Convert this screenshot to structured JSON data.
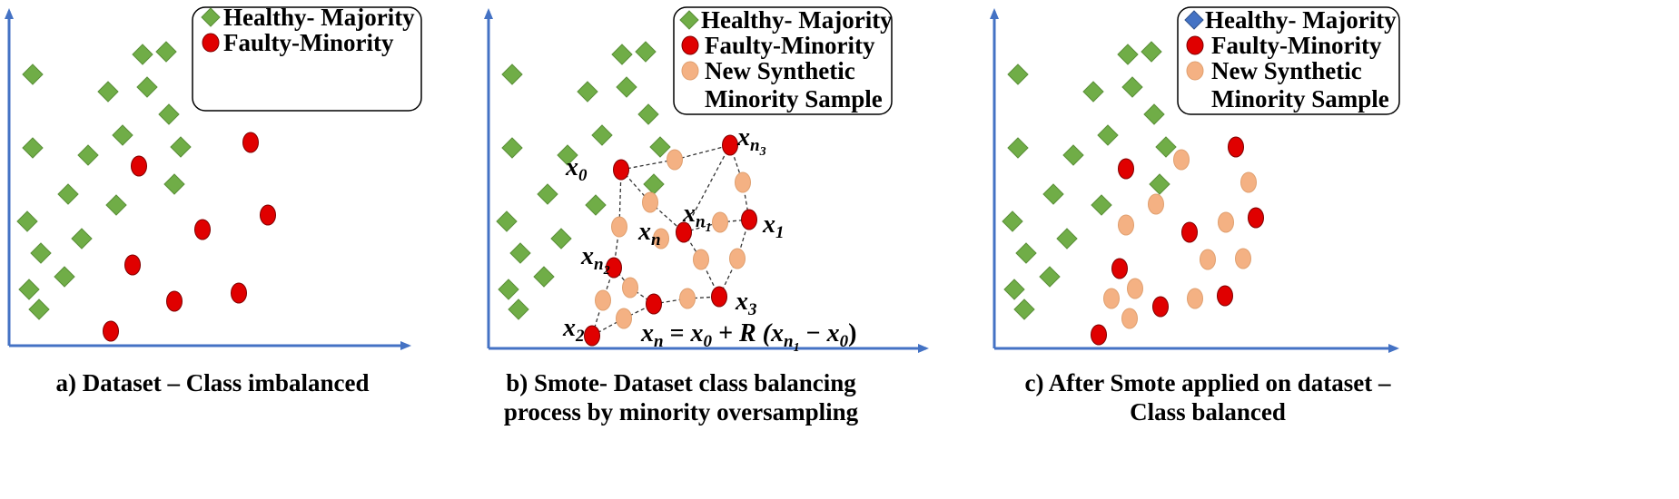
{
  "colors": {
    "axis": "#4472C4",
    "majority_fill": "#70AD47",
    "majority_fill_alt": "#4472C4",
    "minority_fill": "#E00000",
    "synthetic_fill": "#F4B183",
    "edge": "#333333"
  },
  "panels": [
    {
      "caption": [
        "a) Dataset – Class imbalanced"
      ],
      "legend": [
        {
          "marker": "diamond",
          "label": "Healthy- Majority"
        },
        {
          "marker": "circle-red",
          "label": "Faulty-Minority"
        }
      ]
    },
    {
      "caption": [
        "b) Smote- Dataset class balancing",
        "process by minority oversampling"
      ],
      "legend": [
        {
          "marker": "diamond",
          "label": "Healthy- Majority"
        },
        {
          "marker": "circle-red",
          "label": "Faulty-Minority"
        },
        {
          "marker": "circle-synthetic",
          "label": "New Synthetic"
        },
        {
          "marker": "none",
          "label": "Minority Sample"
        }
      ],
      "point_labels": [
        {
          "base": "x",
          "sub": "0",
          "subsub": ""
        },
        {
          "base": "x",
          "sub": "n",
          "subsub": "3"
        },
        {
          "base": "x",
          "sub": "n",
          "subsub": "1"
        },
        {
          "base": "x",
          "sub": "1",
          "subsub": ""
        },
        {
          "base": "x",
          "sub": "n",
          "subsub": ""
        },
        {
          "base": "x",
          "sub": "n",
          "subsub": "2"
        },
        {
          "base": "x",
          "sub": "3",
          "subsub": ""
        },
        {
          "base": "x",
          "sub": "2",
          "subsub": ""
        }
      ],
      "formula": {
        "lhs_base": "x",
        "lhs_sub": "n",
        "eq": " = ",
        "x0_base": "x",
        "x0_sub": "0",
        "plus_r": " + R (",
        "xn1_base": "x",
        "xn1_sub": "n",
        "xn1_subsub": "1",
        "minus": " − ",
        "x0b_base": "x",
        "x0b_sub": "0",
        "close": ")"
      }
    },
    {
      "caption": [
        "c) After Smote applied on dataset –",
        "Class balanced"
      ],
      "legend": [
        {
          "marker": "diamond-blue",
          "label": "Healthy- Majority"
        },
        {
          "marker": "circle-red",
          "label": "Faulty-Minority"
        },
        {
          "marker": "circle-synthetic",
          "label": "New Synthetic"
        },
        {
          "marker": "none",
          "label": "Minority Sample"
        }
      ]
    }
  ]
}
